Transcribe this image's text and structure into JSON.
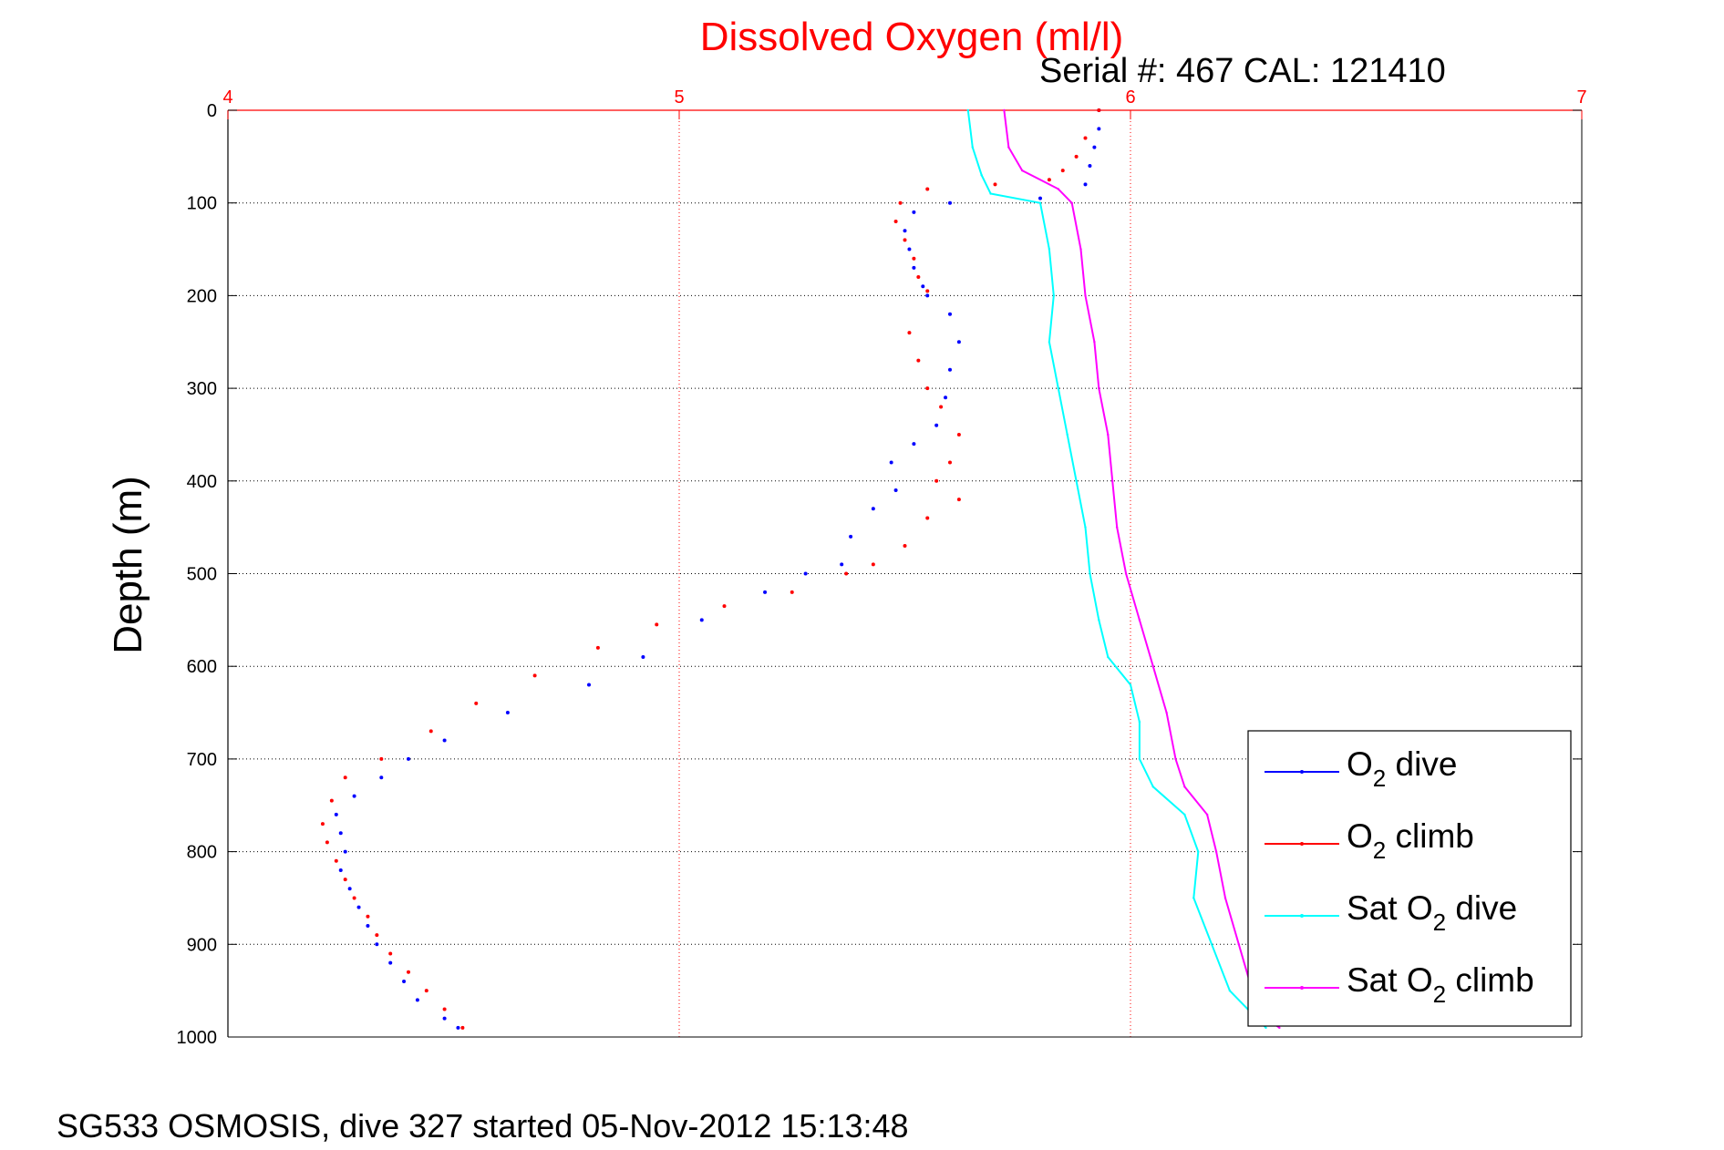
{
  "title": "Dissolved Oxygen (ml/l)",
  "subtitle": "Serial #: 467  CAL: 121410",
  "footer": "SG533 OSMOSIS, dive 327 started 05-Nov-2012 15:13:48",
  "colors": {
    "axis_top": "#ff0000",
    "title": "#ff0000",
    "dive": "#0000ff",
    "climb": "#ff0000",
    "sat_dive": "#00ffff",
    "sat_climb": "#ff00ff"
  },
  "chart_data": {
    "type": "scatter",
    "title": "Dissolved Oxygen (ml/l)",
    "xlabel": "",
    "ylabel": "Depth (m)",
    "xlim": [
      4,
      7
    ],
    "ylim": [
      0,
      1000
    ],
    "y_reversed": true,
    "x_axis_position": "top",
    "xticks": [
      "4",
      "5",
      "6",
      "7"
    ],
    "yticks": [
      "0",
      "100",
      "200",
      "300",
      "400",
      "500",
      "600",
      "700",
      "800",
      "900",
      "1000"
    ],
    "grid": true,
    "legend_position": "bottom-right",
    "series": [
      {
        "name": "O2 dive",
        "label_main": "O",
        "label_sub": "2",
        "label_rest": " dive",
        "style": "dots",
        "color": "#0000ff",
        "points": [
          [
            5.93,
            0
          ],
          [
            5.93,
            20
          ],
          [
            5.92,
            40
          ],
          [
            5.91,
            60
          ],
          [
            5.9,
            80
          ],
          [
            5.8,
            95
          ],
          [
            5.6,
            100
          ],
          [
            5.52,
            110
          ],
          [
            5.5,
            130
          ],
          [
            5.51,
            150
          ],
          [
            5.52,
            170
          ],
          [
            5.54,
            190
          ],
          [
            5.55,
            200
          ],
          [
            5.6,
            220
          ],
          [
            5.62,
            250
          ],
          [
            5.6,
            280
          ],
          [
            5.59,
            310
          ],
          [
            5.57,
            340
          ],
          [
            5.52,
            360
          ],
          [
            5.47,
            380
          ],
          [
            5.48,
            410
          ],
          [
            5.43,
            430
          ],
          [
            5.38,
            460
          ],
          [
            5.36,
            490
          ],
          [
            5.28,
            500
          ],
          [
            5.19,
            520
          ],
          [
            5.05,
            550
          ],
          [
            4.92,
            590
          ],
          [
            4.8,
            620
          ],
          [
            4.62,
            650
          ],
          [
            4.48,
            680
          ],
          [
            4.4,
            700
          ],
          [
            4.34,
            720
          ],
          [
            4.28,
            740
          ],
          [
            4.24,
            760
          ],
          [
            4.25,
            780
          ],
          [
            4.26,
            800
          ],
          [
            4.25,
            820
          ],
          [
            4.27,
            840
          ],
          [
            4.29,
            860
          ],
          [
            4.31,
            880
          ],
          [
            4.33,
            900
          ],
          [
            4.36,
            920
          ],
          [
            4.39,
            940
          ],
          [
            4.42,
            960
          ],
          [
            4.48,
            980
          ],
          [
            4.51,
            990
          ]
        ]
      },
      {
        "name": "O2 climb",
        "label_main": "O",
        "label_sub": "2",
        "label_rest": " climb",
        "style": "dots",
        "color": "#ff0000",
        "points": [
          [
            5.93,
            0
          ],
          [
            5.9,
            30
          ],
          [
            5.88,
            50
          ],
          [
            5.85,
            65
          ],
          [
            5.82,
            75
          ],
          [
            5.7,
            80
          ],
          [
            5.55,
            85
          ],
          [
            5.49,
            100
          ],
          [
            5.48,
            120
          ],
          [
            5.5,
            140
          ],
          [
            5.52,
            160
          ],
          [
            5.53,
            180
          ],
          [
            5.55,
            195
          ],
          [
            5.51,
            240
          ],
          [
            5.53,
            270
          ],
          [
            5.55,
            300
          ],
          [
            5.58,
            320
          ],
          [
            5.62,
            350
          ],
          [
            5.6,
            380
          ],
          [
            5.57,
            400
          ],
          [
            5.62,
            420
          ],
          [
            5.55,
            440
          ],
          [
            5.5,
            470
          ],
          [
            5.43,
            490
          ],
          [
            5.37,
            500
          ],
          [
            5.25,
            520
          ],
          [
            5.1,
            535
          ],
          [
            4.95,
            555
          ],
          [
            4.82,
            580
          ],
          [
            4.68,
            610
          ],
          [
            4.55,
            640
          ],
          [
            4.45,
            670
          ],
          [
            4.34,
            700
          ],
          [
            4.26,
            720
          ],
          [
            4.23,
            745
          ],
          [
            4.21,
            770
          ],
          [
            4.22,
            790
          ],
          [
            4.24,
            810
          ],
          [
            4.26,
            830
          ],
          [
            4.28,
            850
          ],
          [
            4.31,
            870
          ],
          [
            4.33,
            890
          ],
          [
            4.36,
            910
          ],
          [
            4.4,
            930
          ],
          [
            4.44,
            950
          ],
          [
            4.48,
            970
          ],
          [
            4.52,
            990
          ]
        ]
      },
      {
        "name": "Sat O2 dive",
        "label_main": "Sat O",
        "label_sub": "2",
        "label_rest": " dive",
        "style": "line",
        "color": "#00ffff",
        "points": [
          [
            5.64,
            0
          ],
          [
            5.65,
            40
          ],
          [
            5.67,
            70
          ],
          [
            5.69,
            90
          ],
          [
            5.8,
            100
          ],
          [
            5.82,
            150
          ],
          [
            5.83,
            200
          ],
          [
            5.82,
            250
          ],
          [
            5.84,
            300
          ],
          [
            5.86,
            350
          ],
          [
            5.88,
            400
          ],
          [
            5.9,
            450
          ],
          [
            5.91,
            500
          ],
          [
            5.93,
            550
          ],
          [
            5.95,
            590
          ],
          [
            6.0,
            620
          ],
          [
            6.02,
            660
          ],
          [
            6.02,
            700
          ],
          [
            6.05,
            730
          ],
          [
            6.12,
            760
          ],
          [
            6.15,
            800
          ],
          [
            6.14,
            850
          ],
          [
            6.18,
            900
          ],
          [
            6.22,
            950
          ],
          [
            6.28,
            980
          ],
          [
            6.3,
            990
          ]
        ]
      },
      {
        "name": "Sat O2 climb",
        "label_main": "Sat O",
        "label_sub": "2",
        "label_rest": " climb",
        "style": "line",
        "color": "#ff00ff",
        "points": [
          [
            5.72,
            0
          ],
          [
            5.73,
            40
          ],
          [
            5.76,
            65
          ],
          [
            5.84,
            85
          ],
          [
            5.87,
            100
          ],
          [
            5.89,
            150
          ],
          [
            5.9,
            200
          ],
          [
            5.92,
            250
          ],
          [
            5.93,
            300
          ],
          [
            5.95,
            350
          ],
          [
            5.96,
            400
          ],
          [
            5.97,
            450
          ],
          [
            5.99,
            500
          ],
          [
            6.02,
            550
          ],
          [
            6.05,
            600
          ],
          [
            6.08,
            650
          ],
          [
            6.1,
            700
          ],
          [
            6.12,
            730
          ],
          [
            6.17,
            760
          ],
          [
            6.19,
            800
          ],
          [
            6.21,
            850
          ],
          [
            6.24,
            900
          ],
          [
            6.27,
            950
          ],
          [
            6.3,
            980
          ],
          [
            6.33,
            990
          ]
        ]
      }
    ]
  }
}
